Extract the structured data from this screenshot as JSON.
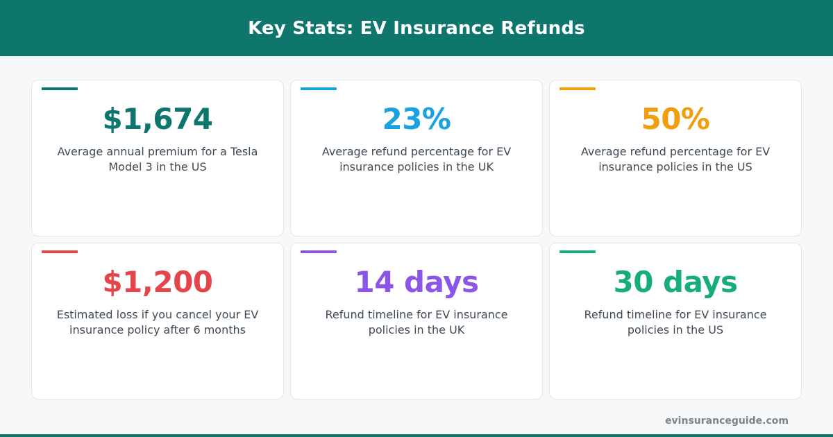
{
  "header": {
    "title": "Key Stats: EV Insurance Refunds"
  },
  "cards": [
    {
      "value": "$1,674",
      "description": "Average annual premium for a Tesla Model 3 in the US",
      "color": "#0f766e"
    },
    {
      "value": "23%",
      "description": "Average refund percentage for EV insurance policies in the UK",
      "color": "#1aa1df"
    },
    {
      "value": "50%",
      "description": "Average refund percentage for EV insurance policies in the US",
      "color": "#f29d0b"
    },
    {
      "value": "$1,200",
      "description": "Estimated loss if you cancel your EV insurance policy after 6 months",
      "color": "#e3454a"
    },
    {
      "value": "14 days",
      "description": "Refund timeline for EV insurance policies in the UK",
      "color": "#8a55e8"
    },
    {
      "value": "30 days",
      "description": "Refund timeline for EV insurance policies in the US",
      "color": "#17ad7a"
    }
  ],
  "footer": {
    "site": "evinsuranceguide.com"
  },
  "theme": {
    "brand": "#0f766e",
    "background": "#f6f8fa",
    "card_border": "#e3e7ea",
    "text": "#3f4a55",
    "footer_text": "#7b838b"
  }
}
